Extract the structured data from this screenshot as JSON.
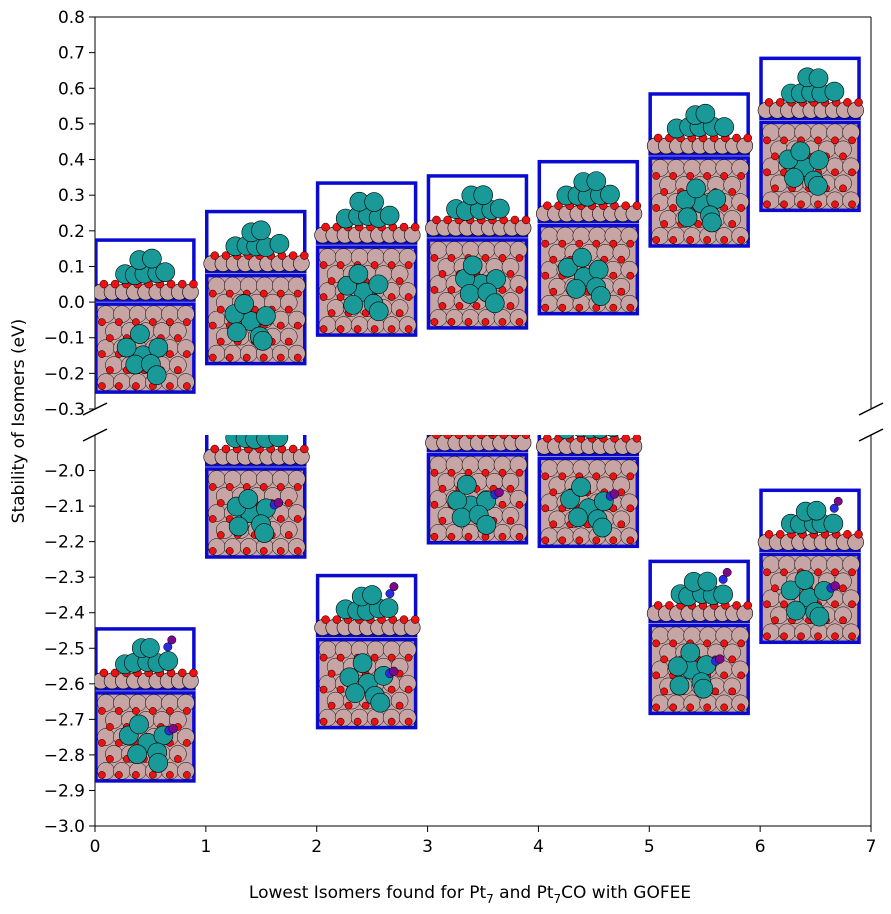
{
  "chart_data": {
    "type": "scatter",
    "title": "",
    "xlabel_main": "Lowest Isomers found for Pt",
    "xlabel_sub1": "7",
    "xlabel_mid": " and Pt",
    "xlabel_sub2": "7",
    "xlabel_end": "CO with GOFEE",
    "ylabel": "Stability of Isomers (eV)",
    "xlim": [
      0,
      7
    ],
    "ylim_top": [
      -0.3,
      0.8
    ],
    "ylim_bottom": [
      -3.0,
      -1.9
    ],
    "broken_y_axis": true,
    "x_ticks": [
      "0",
      "1",
      "2",
      "3",
      "4",
      "5",
      "6",
      "7"
    ],
    "y_ticks_top": [
      "0.8",
      "0.7",
      "0.6",
      "0.5",
      "0.4",
      "0.3",
      "0.2",
      "0.1",
      "0.0",
      "−0.1",
      "−0.2",
      "−0.3"
    ],
    "y_ticks_bottom": [
      "−2.0",
      "−2.1",
      "−2.2",
      "−2.3",
      "−2.4",
      "−2.5",
      "−2.6",
      "−2.7",
      "−2.8",
      "−2.9",
      "−3.0"
    ],
    "series": [
      {
        "name": "Pt7",
        "marker": "isomer structure image",
        "points": [
          {
            "x": 0.45,
            "y": 0.0
          },
          {
            "x": 1.45,
            "y": 0.08
          },
          {
            "x": 2.45,
            "y": 0.16
          },
          {
            "x": 3.45,
            "y": 0.18
          },
          {
            "x": 4.45,
            "y": 0.22
          },
          {
            "x": 5.45,
            "y": 0.41
          },
          {
            "x": 6.45,
            "y": 0.51
          }
        ]
      },
      {
        "name": "Pt7CO",
        "marker": "isomer structure image",
        "points": [
          {
            "x": 0.45,
            "y": -2.62
          },
          {
            "x": 1.45,
            "y": -1.99
          },
          {
            "x": 2.45,
            "y": -2.47
          },
          {
            "x": 3.45,
            "y": -1.95
          },
          {
            "x": 4.45,
            "y": -1.96
          },
          {
            "x": 5.45,
            "y": -2.43
          },
          {
            "x": 6.45,
            "y": -2.23
          }
        ]
      }
    ],
    "colors": {
      "frame": "#0a0ad2",
      "surface": "#c8a5a5",
      "oxygen": "#ee1111",
      "platinum": "#1a9999",
      "carbon": "#2a2ae0",
      "co_oxygen": "#7a0a8a"
    }
  }
}
